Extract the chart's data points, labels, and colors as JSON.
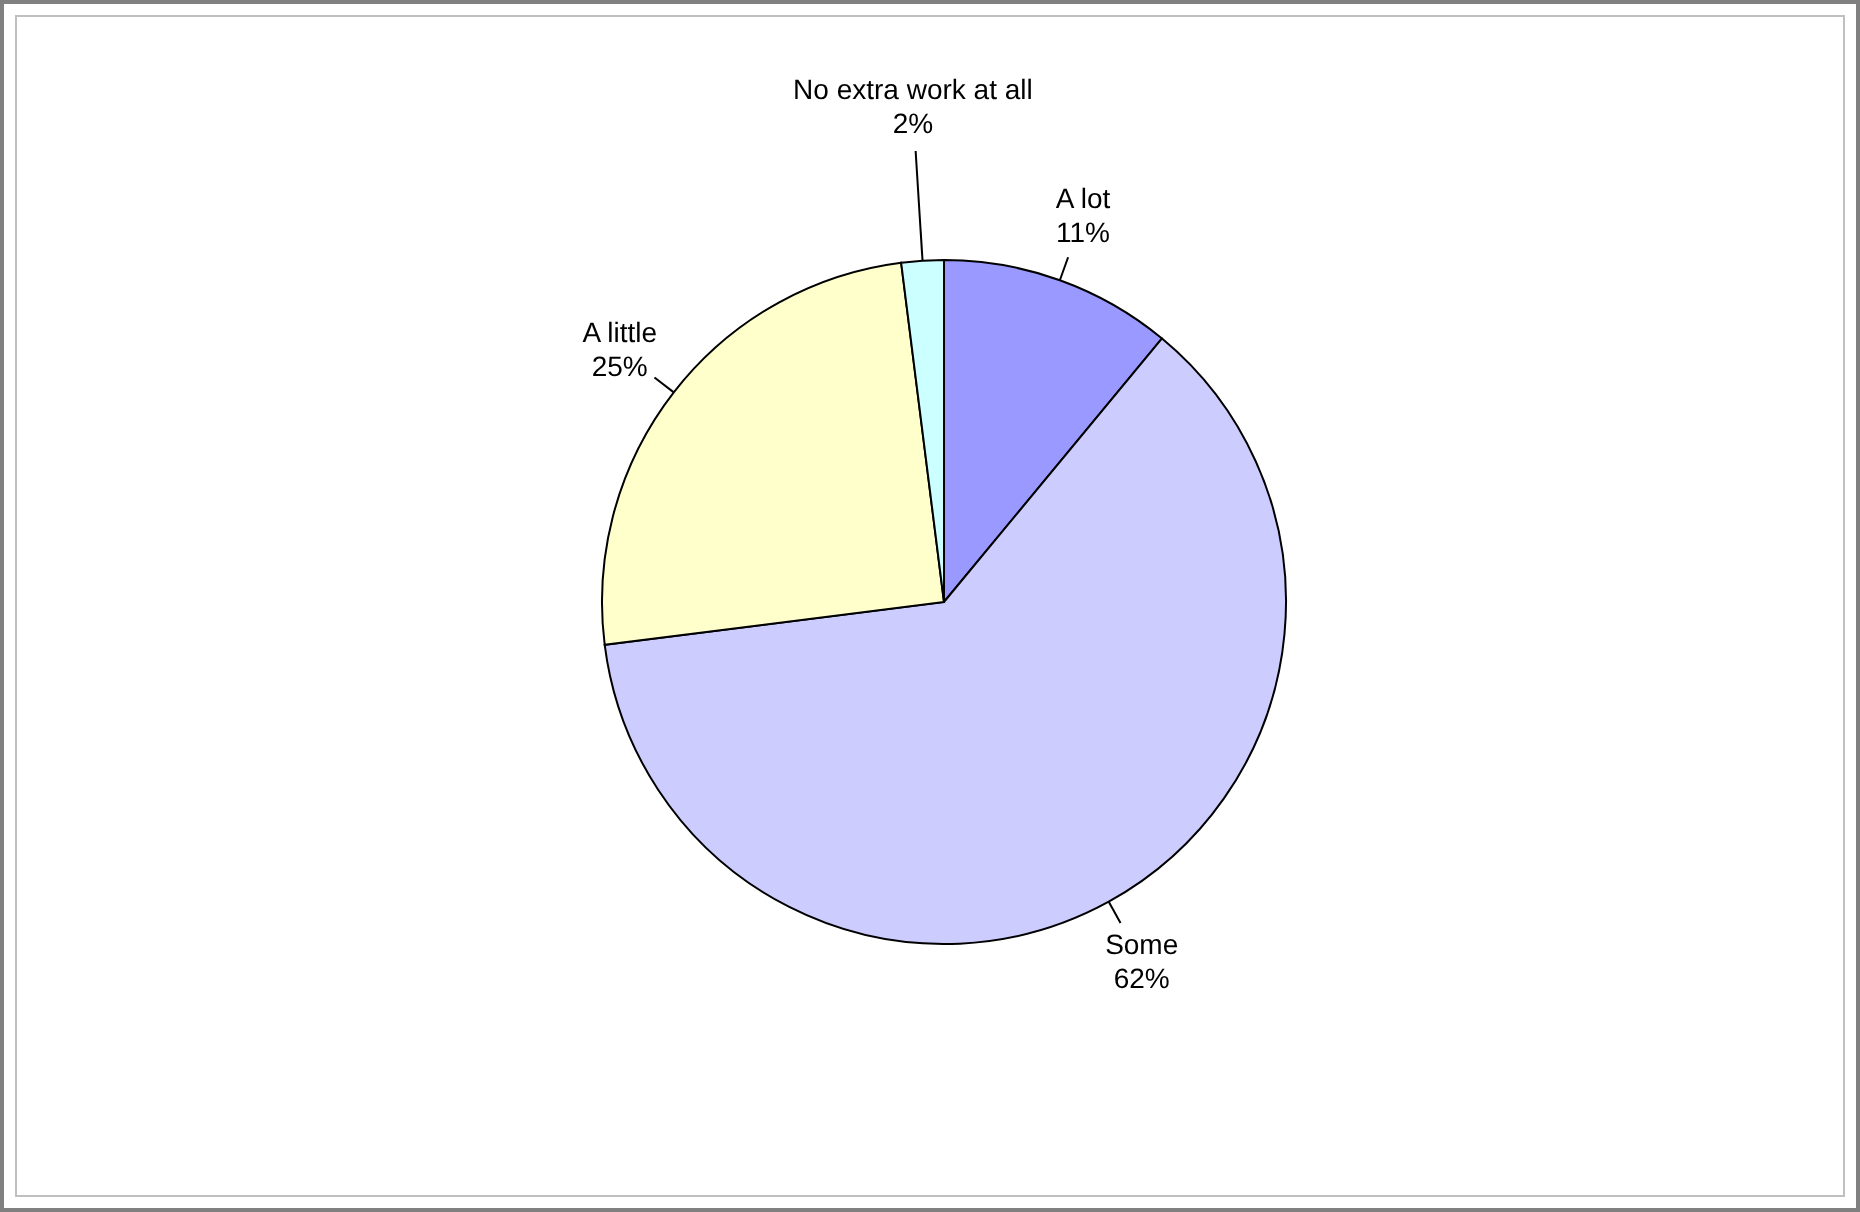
{
  "chart_data": {
    "type": "pie",
    "categories": [
      "A lot",
      "Some",
      "A little",
      "No extra work at all"
    ],
    "values": [
      11,
      62,
      25,
      2
    ],
    "colors": [
      "#9999ff",
      "#ccccff",
      "#ffffcc",
      "#ccffff"
    ],
    "value_labels": [
      "11%",
      "62%",
      "25%",
      "2%"
    ],
    "legend": false
  }
}
